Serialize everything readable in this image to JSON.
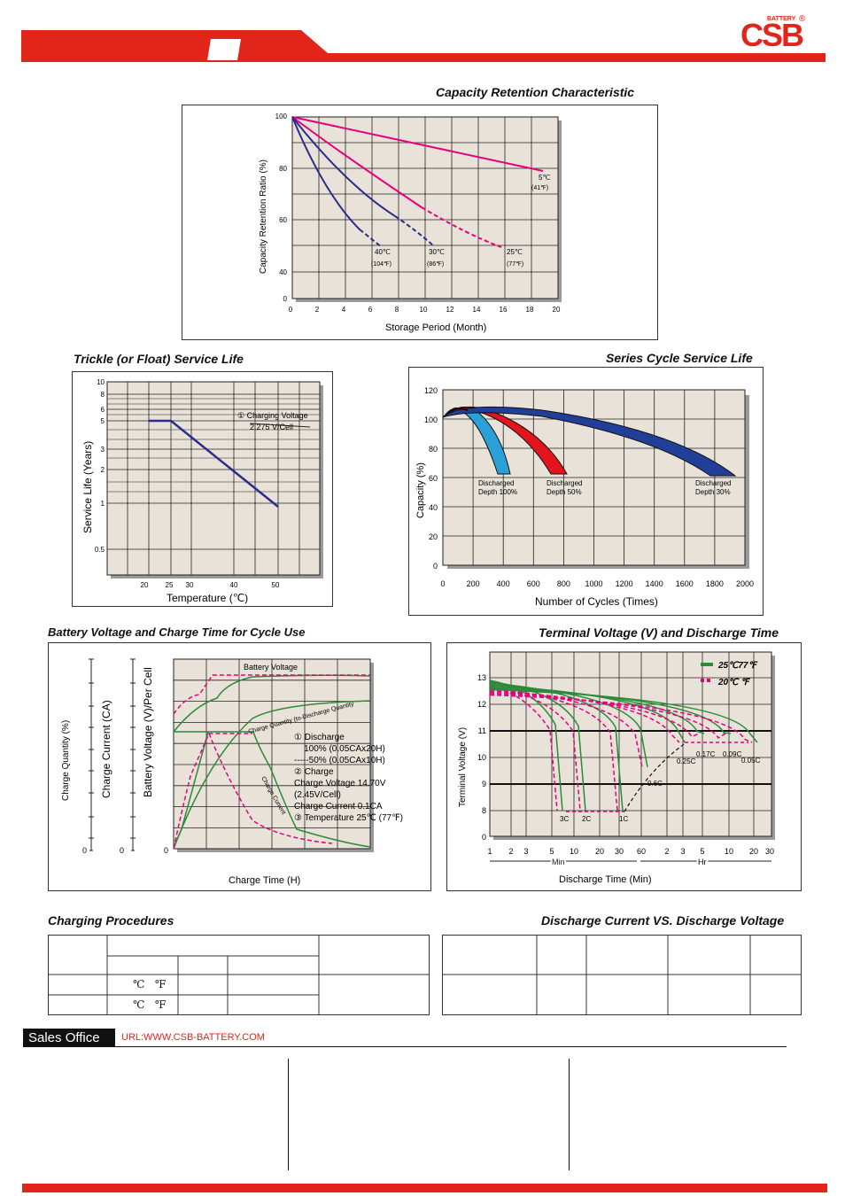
{
  "header": {
    "brand_colors": {
      "red": "#e1251b",
      "grid_bg": "#e8e2d8"
    },
    "logo_text": "CSB",
    "logo_sub": "BATTERY",
    "logo_reg": "®"
  },
  "capacity_retention": {
    "title": "Capacity  Retention  Characteristic",
    "ylabel": "Capacity Retention Ratio (%)",
    "xlabel": "Storage Period (Month)",
    "yticks": [
      "100",
      "80",
      "60",
      "40",
      "0"
    ],
    "xticks": [
      "0",
      "2",
      "4",
      "6",
      "8",
      "10",
      "12",
      "14",
      "16",
      "18",
      "20"
    ],
    "labels": [
      {
        "c": "5℃",
        "f": "(41℉)"
      },
      {
        "c": "40℃",
        "f": "(104℉)"
      },
      {
        "c": "30℃",
        "f": "(86℉)"
      },
      {
        "c": "25℃",
        "f": "(77℉)"
      }
    ]
  },
  "trickle": {
    "title": "Trickle (or Float) Service Life",
    "ylabel": "Service Life (Years)",
    "xlabel": "Temperature (℃)",
    "yticks": [
      "10",
      "8",
      "6",
      "5",
      "3",
      "2",
      "1",
      "0.5"
    ],
    "xticks": [
      "20",
      "25",
      "30",
      "40",
      "50"
    ],
    "note_1": "① Charging Voltage",
    "note_2": "2.275 V/Cell"
  },
  "series_cycle": {
    "title": "Series Cycle Service Life",
    "ylabel": "Capacity (%)",
    "xlabel": "Number of Cycles (Times)",
    "yticks": [
      "120",
      "100",
      "80",
      "60",
      "40",
      "20",
      "0"
    ],
    "xticks": [
      "0",
      "200",
      "400",
      "600",
      "800",
      "1000",
      "1200",
      "1400",
      "1600",
      "1800",
      "2000"
    ],
    "labels": [
      {
        "l1": "Discharged",
        "l2": "Depth 100%"
      },
      {
        "l1": "Discharged",
        "l2": "Depth 50%"
      },
      {
        "l1": "Discharged",
        "l2": "Depth 30%"
      }
    ]
  },
  "charge_time": {
    "title": "Battery Voltage and Charge Time for Cycle Use",
    "ylabel_q": "Charge Quantity (%)",
    "ylabel_c": "Charge Current (CA)",
    "ylabel_v": "Battery Voltage (V)/Per Cell",
    "xlabel": "Charge Time (H)",
    "zeros": [
      "0",
      "0",
      "0"
    ],
    "battery_voltage_label": "Battery Voltage",
    "charge_quantity_label": "Charge Quantity (to-Discharge Quantity",
    "charge_current_label": "Charge Current",
    "notes": [
      "① Discharge",
      "    100% (0.05CAx20H)",
      "-----50% (0.05CAx10H)",
      "② Charge",
      "Charge Voltage 14.70V",
      "(2.45V/Cell)",
      "Charge Current 0.1CA",
      "③ Temperature 25℃ (77℉)"
    ]
  },
  "discharge_time": {
    "title": "Terminal Voltage (V) and Discharge Time",
    "ylabel": "Terminal Voltage (V)",
    "xlabel": "Discharge Time (Min)",
    "yticks": [
      "13",
      "12",
      "11",
      "10",
      "9",
      "8",
      "0"
    ],
    "xticks_min": [
      "1",
      "2",
      "3",
      "5",
      "10",
      "20",
      "30",
      "60"
    ],
    "xticks_hr": [
      "2",
      "3",
      "5",
      "10",
      "20",
      "30"
    ],
    "min_label": "Min",
    "hr_label": "Hr",
    "legend_25": "25℃77℉",
    "legend_20": "20℃  ℉",
    "rate_labels": [
      "3C",
      "2C",
      "1C",
      "0.6C",
      "0.25C",
      "0.17C",
      "0.09C",
      "0.05C"
    ]
  },
  "charging_procedures": {
    "title": "Charging Procedures"
  },
  "discharge_current": {
    "title": "Discharge Current VS. Discharge Voltage"
  },
  "table_units": {
    "row1": "℃   ℉",
    "row2": "℃   ℉"
  },
  "sales": {
    "label": "Sales Office",
    "url": "URL:WWW.CSB-BATTERY.COM"
  }
}
